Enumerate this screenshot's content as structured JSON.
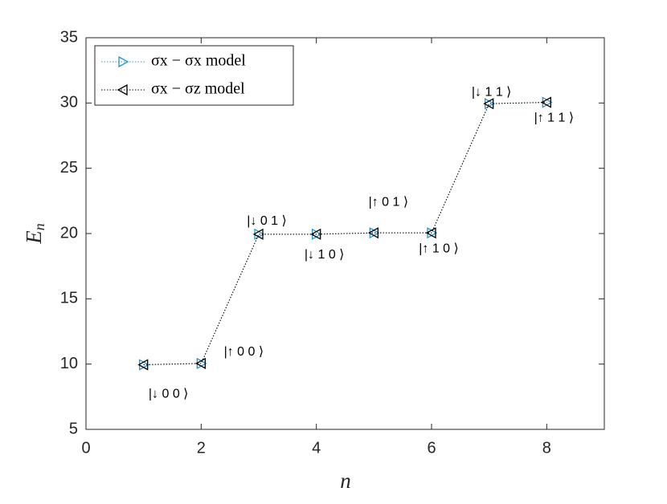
{
  "chart_data": {
    "type": "line",
    "xlabel": "n",
    "ylabel": "En",
    "x": [
      1,
      2,
      3,
      4,
      5,
      6,
      7,
      8
    ],
    "series": [
      {
        "name": "σx − σx model",
        "color": "#2b93c9",
        "marker": "triangle-right",
        "values": [
          9.95,
          10.05,
          19.95,
          19.95,
          20.05,
          20.05,
          29.95,
          30.05
        ]
      },
      {
        "name": "σx − σz model",
        "color": "#000000",
        "marker": "triangle-left",
        "values": [
          9.95,
          10.05,
          19.95,
          19.95,
          20.05,
          20.05,
          29.95,
          30.05
        ]
      }
    ],
    "point_labels": [
      "|↓ 0 0 ⟩",
      "|↑ 0 0 ⟩",
      "|↓ 0 1 ⟩",
      "|↓ 1 0 ⟩",
      "|↑ 0 1 ⟩",
      "|↑ 1 0 ⟩",
      "|↓ 1 1 ⟩",
      "|↑ 1 1 ⟩"
    ],
    "xlim": [
      0,
      9
    ],
    "xticks": [
      0,
      2,
      4,
      6,
      8
    ],
    "ylim": [
      5,
      35
    ],
    "yticks": [
      5,
      10,
      15,
      20,
      25,
      30,
      35
    ],
    "grid": false,
    "legend_position": "northwest"
  }
}
